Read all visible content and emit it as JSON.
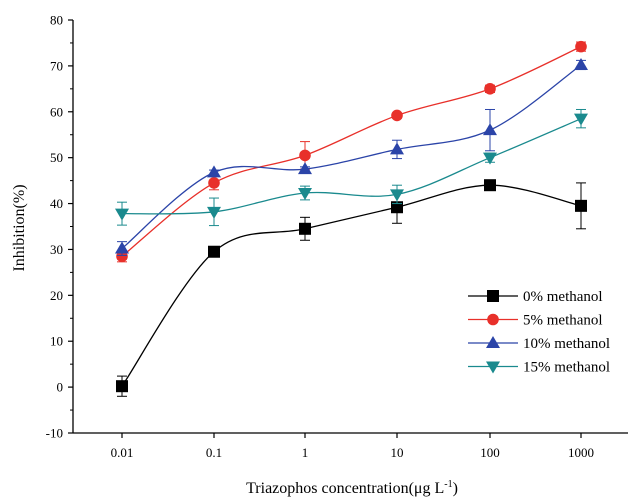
{
  "chart_data": {
    "type": "line",
    "title": "",
    "xlabel": "Triazophos concentration(μg L",
    "xlabel_superscript": "-1",
    "xlabel_suffix": ")",
    "ylabel": "Inhibition(%)",
    "x_scale": "log",
    "categories": [
      "0.01",
      "0.1",
      "1",
      "10",
      "100",
      "1000"
    ],
    "x": [
      0.01,
      0.1,
      1,
      10,
      100,
      1000
    ],
    "ylim": [
      -10,
      80
    ],
    "yticks": [
      "-10",
      "0",
      "10",
      "20",
      "30",
      "40",
      "50",
      "60",
      "70",
      "80"
    ],
    "ytick_values": [
      -10,
      0,
      10,
      20,
      30,
      40,
      50,
      60,
      70,
      80
    ],
    "grid": false,
    "legend_position": "bottom-right",
    "series": [
      {
        "name": "0% methanol",
        "color": "#000000",
        "marker": "square",
        "values": [
          0.2,
          29.5,
          34.5,
          39.2,
          44.0,
          39.5
        ],
        "errors": [
          2.2,
          0.8,
          2.5,
          3.5,
          1.0,
          5.0
        ]
      },
      {
        "name": "5% methanol",
        "color": "#e8302a",
        "marker": "circle",
        "values": [
          28.5,
          44.5,
          50.5,
          59.2,
          65.0,
          74.2
        ],
        "errors": [
          1.2,
          1.5,
          3.0,
          0.5,
          0.8,
          1.0
        ]
      },
      {
        "name": "10% methanol",
        "color": "#2b44a8",
        "marker": "triangle-up",
        "values": [
          30.2,
          46.8,
          47.5,
          51.8,
          56.0,
          70.2
        ],
        "errors": [
          1.5,
          0.5,
          0.5,
          2.0,
          4.5,
          1.0
        ]
      },
      {
        "name": "15% methanol",
        "color": "#1a8a8e",
        "marker": "triangle-down",
        "values": [
          37.8,
          38.2,
          42.3,
          42.0,
          50.0,
          58.5
        ],
        "errors": [
          2.5,
          3.0,
          1.5,
          2.0,
          1.0,
          2.0
        ]
      }
    ]
  }
}
